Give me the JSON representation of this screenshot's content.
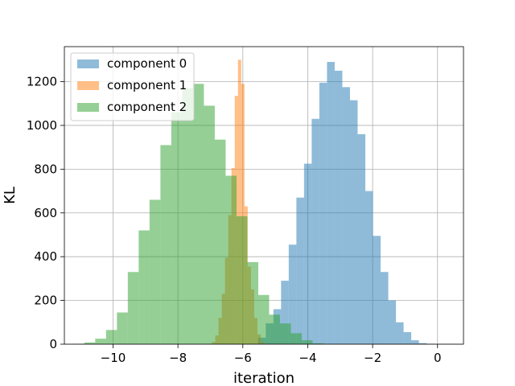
{
  "chart_data": {
    "type": "histogram",
    "title": "",
    "xlabel": "iteration",
    "ylabel": "KL",
    "xlim": [
      -11.5,
      0.8
    ],
    "ylim": [
      0,
      1360
    ],
    "xticks": [
      -10,
      -8,
      -6,
      -4,
      -2,
      0
    ],
    "xtick_labels": [
      "−10",
      "−8",
      "−6",
      "−4",
      "−2",
      "0"
    ],
    "yticks": [
      0,
      200,
      400,
      600,
      800,
      1000,
      1200
    ],
    "ytick_labels": [
      "0",
      "200",
      "400",
      "600",
      "800",
      "1000",
      "1200"
    ],
    "grid": true,
    "legend_position": "top-left",
    "series": [
      {
        "name": "component 0",
        "color": "#1f77b4",
        "alpha": 0.5,
        "bin_start": -5.53,
        "bin_width": 0.236,
        "counts": [
          30,
          95,
          160,
          290,
          455,
          670,
          825,
          1030,
          1195,
          1290,
          1250,
          1175,
          1115,
          960,
          700,
          495,
          330,
          200,
          100,
          55,
          18,
          5,
          2
        ]
      },
      {
        "name": "component 1",
        "color": "#ff7f0e",
        "alpha": 0.5,
        "bin_start": -6.95,
        "bin_width": 0.1,
        "counts": [
          10,
          40,
          120,
          230,
          395,
          590,
          805,
          1135,
          1300,
          1190,
          630,
          355,
          250,
          120,
          45,
          10
        ]
      },
      {
        "name": "component 2",
        "color": "#2ca02c",
        "alpha": 0.5,
        "bin_start": -11.22,
        "bin_width": 0.335,
        "counts": [
          2,
          8,
          25,
          65,
          145,
          330,
          520,
          660,
          910,
          1060,
          1170,
          1190,
          1090,
          935,
          770,
          585,
          375,
          225,
          135,
          95,
          50,
          18,
          4
        ]
      }
    ]
  }
}
